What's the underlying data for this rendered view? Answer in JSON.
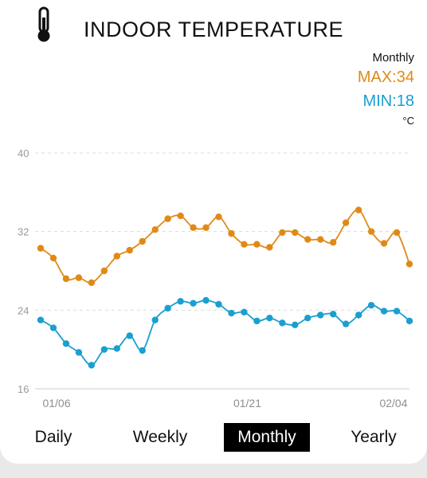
{
  "header": {
    "title": "INDOOR TEMPERATURE",
    "icon": "thermometer-icon"
  },
  "legend": {
    "period": "Monthly",
    "max_label": "MAX:34",
    "min_label": "MIN:18",
    "unit": "°C",
    "max_color": "#e08a16",
    "min_color": "#1a9fd0"
  },
  "tabs": [
    {
      "label": "Daily",
      "active": false
    },
    {
      "label": "Weekly",
      "active": false
    },
    {
      "label": "Monthly",
      "active": true
    },
    {
      "label": "Yearly",
      "active": false
    }
  ],
  "chart_data": {
    "type": "line",
    "y_ticks": [
      "40",
      "32",
      "24",
      "16"
    ],
    "ylim": [
      16,
      40
    ],
    "x_ticks": [
      {
        "label": "01/06",
        "index": 0
      },
      {
        "label": "01/21",
        "index": 15
      },
      {
        "label": "02/04",
        "index": 29
      }
    ],
    "grid": true,
    "series": [
      {
        "color": "#e08a16",
        "values": [
          30.3,
          29.3,
          27.2,
          27.3,
          26.8,
          28.0,
          29.5,
          30.1,
          31.0,
          32.2,
          33.3,
          33.6,
          32.4,
          32.4,
          33.5,
          31.8,
          30.7,
          30.7,
          30.4,
          31.9,
          31.9,
          31.2,
          31.2,
          30.9,
          32.9,
          34.2,
          32.0,
          30.8,
          31.9,
          28.7
        ]
      },
      {
        "color": "#1a9fd0",
        "values": [
          23.0,
          22.2,
          20.6,
          19.7,
          18.4,
          20.0,
          20.1,
          21.4,
          19.9,
          23.0,
          24.2,
          24.9,
          24.7,
          25.0,
          24.6,
          23.7,
          23.8,
          22.9,
          23.2,
          22.7,
          22.5,
          23.2,
          23.5,
          23.6,
          22.6,
          23.5,
          24.5,
          23.9,
          23.9,
          22.9
        ]
      }
    ]
  }
}
